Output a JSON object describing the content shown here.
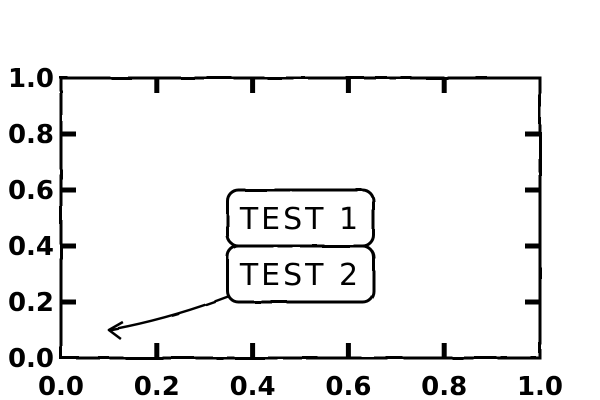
{
  "chart_data": {
    "type": "scatter",
    "xlim": [
      0,
      1
    ],
    "ylim": [
      0,
      1
    ],
    "x_ticks": [
      0.0,
      0.2,
      0.4,
      0.6,
      0.8,
      1.0
    ],
    "y_ticks": [
      0.0,
      0.2,
      0.4,
      0.6,
      0.8,
      1.0
    ],
    "x_tick_labels": [
      "0.0",
      "0.2",
      "0.4",
      "0.6",
      "0.8",
      "1.0"
    ],
    "y_tick_labels": [
      "0.0",
      "0.2",
      "0.4",
      "0.6",
      "0.8",
      "1.0"
    ],
    "grid": false,
    "style": "hand-drawn",
    "annotations": [
      {
        "text": "TEST 1",
        "x": 0.5,
        "y": 0.5,
        "boxed": true,
        "arrow": false
      },
      {
        "text": "TEST 2",
        "x": 0.5,
        "y": 0.3,
        "boxed": true,
        "arrow": true,
        "arrow_target": [
          0.1,
          0.1
        ]
      }
    ]
  }
}
